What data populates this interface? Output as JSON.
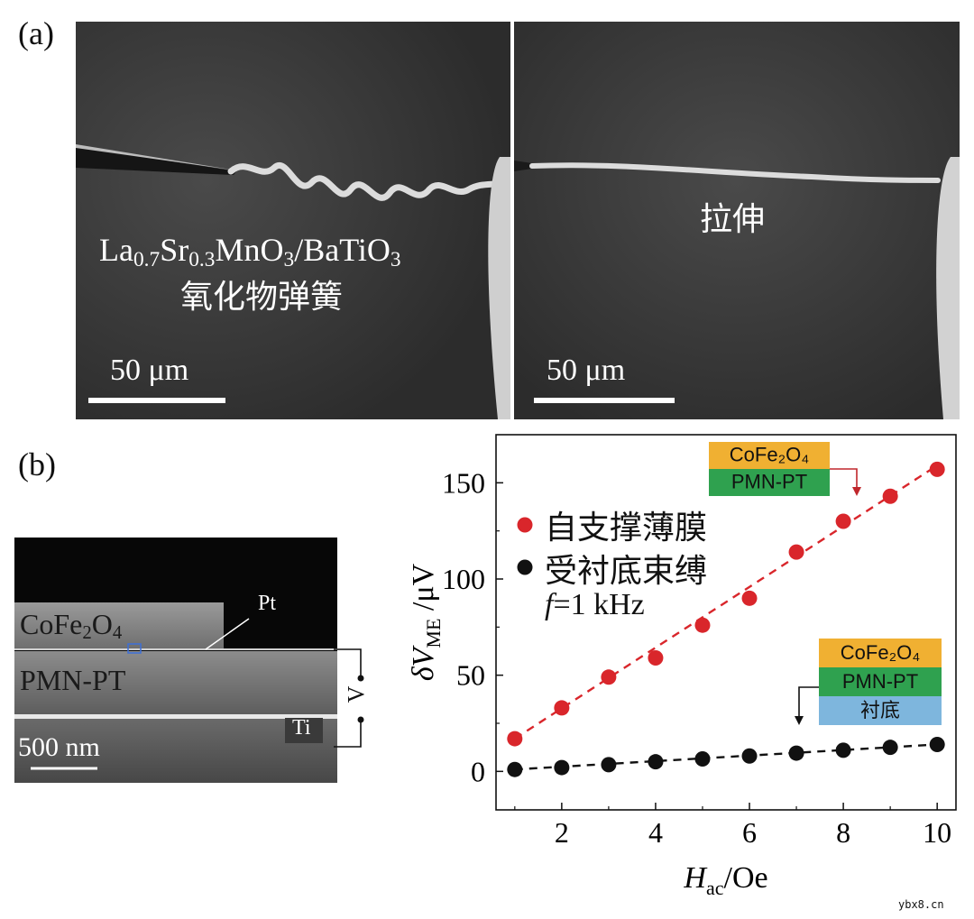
{
  "panel_a": {
    "label": "(a)",
    "left_image": {
      "caption_parts": [
        "La",
        "0.7",
        "Sr",
        "0.3",
        "MnO",
        "3",
        "/BaTiO",
        "3"
      ],
      "caption_line2": "氧化物弹簧",
      "scale_label": "50 μm"
    },
    "right_image": {
      "caption": "拉伸",
      "scale_label": "50 μm"
    }
  },
  "panel_b": {
    "label": "(b)",
    "cross_section": {
      "layer_top": "CoFe",
      "layer_top_sub": "2",
      "layer_top_o": "O",
      "layer_top_o_sub": "4",
      "layer_mid": "PMN-PT",
      "pt_label": "Pt",
      "ti_label": "Ti",
      "v_label": "V",
      "scale_label": "500 nm"
    }
  },
  "chart_data": {
    "type": "scatter",
    "xlabel_main": "H",
    "xlabel_sub": "ac",
    "xlabel_unit": "/Oe",
    "ylabel_main": "δV",
    "ylabel_sub": "ME",
    "ylabel_unit": " /μV",
    "xlim": [
      0.6,
      10.4
    ],
    "ylim": [
      -20,
      175
    ],
    "xticks": [
      2,
      4,
      6,
      8,
      10
    ],
    "yticks": [
      0,
      50,
      100,
      150
    ],
    "series": [
      {
        "name": "自支撑薄膜",
        "color": "#d9262b",
        "x": [
          1,
          2,
          3,
          4,
          5,
          6,
          7,
          8,
          9,
          10
        ],
        "y": [
          17,
          33,
          49,
          59,
          76,
          90,
          114,
          130,
          143,
          157
        ],
        "fit": [
          [
            1,
            17
          ],
          [
            10,
            159
          ]
        ]
      },
      {
        "name": "受衬底束缚",
        "color": "#111111",
        "x": [
          1,
          2,
          3,
          4,
          5,
          6,
          7,
          8,
          9,
          10
        ],
        "y": [
          1,
          2,
          3.5,
          5,
          6.5,
          8,
          9.5,
          11,
          12.5,
          14
        ],
        "fit": [
          [
            1,
            1
          ],
          [
            10,
            14
          ]
        ]
      }
    ],
    "legend_extra_f": "f",
    "legend_extra_rest": "=1 kHz",
    "stack_top": {
      "layers": [
        "CoFe₂O₄",
        "PMN-PT"
      ],
      "colors": [
        "#f0b032",
        "#2fa14f"
      ]
    },
    "stack_bottom": {
      "layers": [
        "CoFe₂O₄",
        "PMN-PT",
        "衬底"
      ],
      "colors": [
        "#f0b032",
        "#2fa14f",
        "#7eb6dd"
      ]
    }
  },
  "watermark": "ybx8.cn"
}
